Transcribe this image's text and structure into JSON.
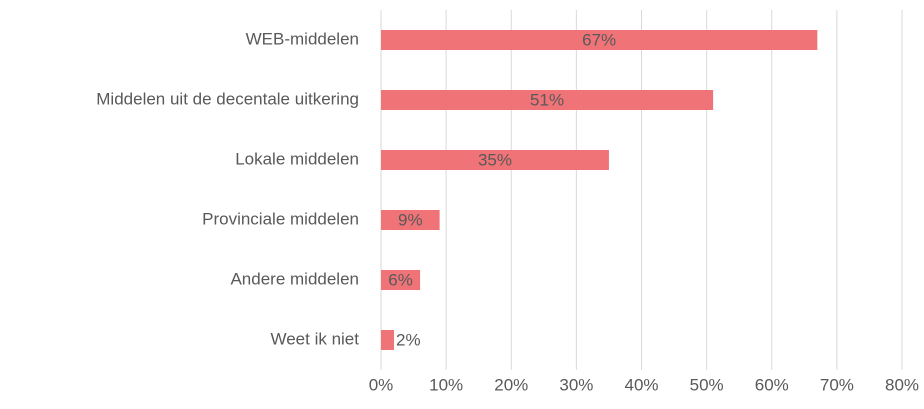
{
  "chart_data": {
    "type": "bar",
    "orientation": "horizontal",
    "categories": [
      "WEB-middelen",
      "Middelen uit de decentale uitkering",
      "Lokale middelen",
      "Provinciale middelen",
      "Andere middelen",
      "Weet ik niet"
    ],
    "values": [
      67,
      51,
      35,
      9,
      6,
      2
    ],
    "value_labels": [
      "67%",
      "51%",
      "35%",
      "9%",
      "6%",
      "2%"
    ],
    "color": "#f07378",
    "xlim": [
      0,
      80
    ],
    "xticks": [
      {
        "value": 0,
        "label": "0%"
      },
      {
        "value": 10,
        "label": "10%"
      },
      {
        "value": 20,
        "label": "20%"
      },
      {
        "value": 30,
        "label": "30%"
      },
      {
        "value": 40,
        "label": "40%"
      },
      {
        "value": 50,
        "label": "50%"
      },
      {
        "value": 60,
        "label": "60%"
      },
      {
        "value": 70,
        "label": "70%"
      },
      {
        "value": 80,
        "label": "80%"
      }
    ],
    "grid": true
  }
}
